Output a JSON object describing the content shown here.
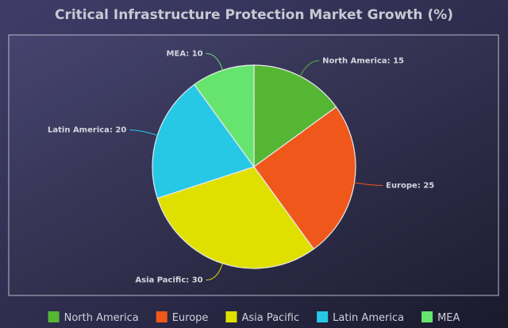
{
  "chart_data": {
    "type": "pie",
    "title": "Critical Infrastructure Protection Market Growth (%)",
    "slices": [
      {
        "label": "North America",
        "value": 15,
        "color": "#55b633"
      },
      {
        "label": "Europe",
        "value": 25,
        "color": "#f0571a"
      },
      {
        "label": "Asia Pacific",
        "value": 30,
        "color": "#dfe000"
      },
      {
        "label": "Latin America",
        "value": 20,
        "color": "#26c8e6"
      },
      {
        "label": "MEA",
        "value": 10,
        "color": "#66e46e"
      }
    ],
    "legend_position": "bottom"
  }
}
